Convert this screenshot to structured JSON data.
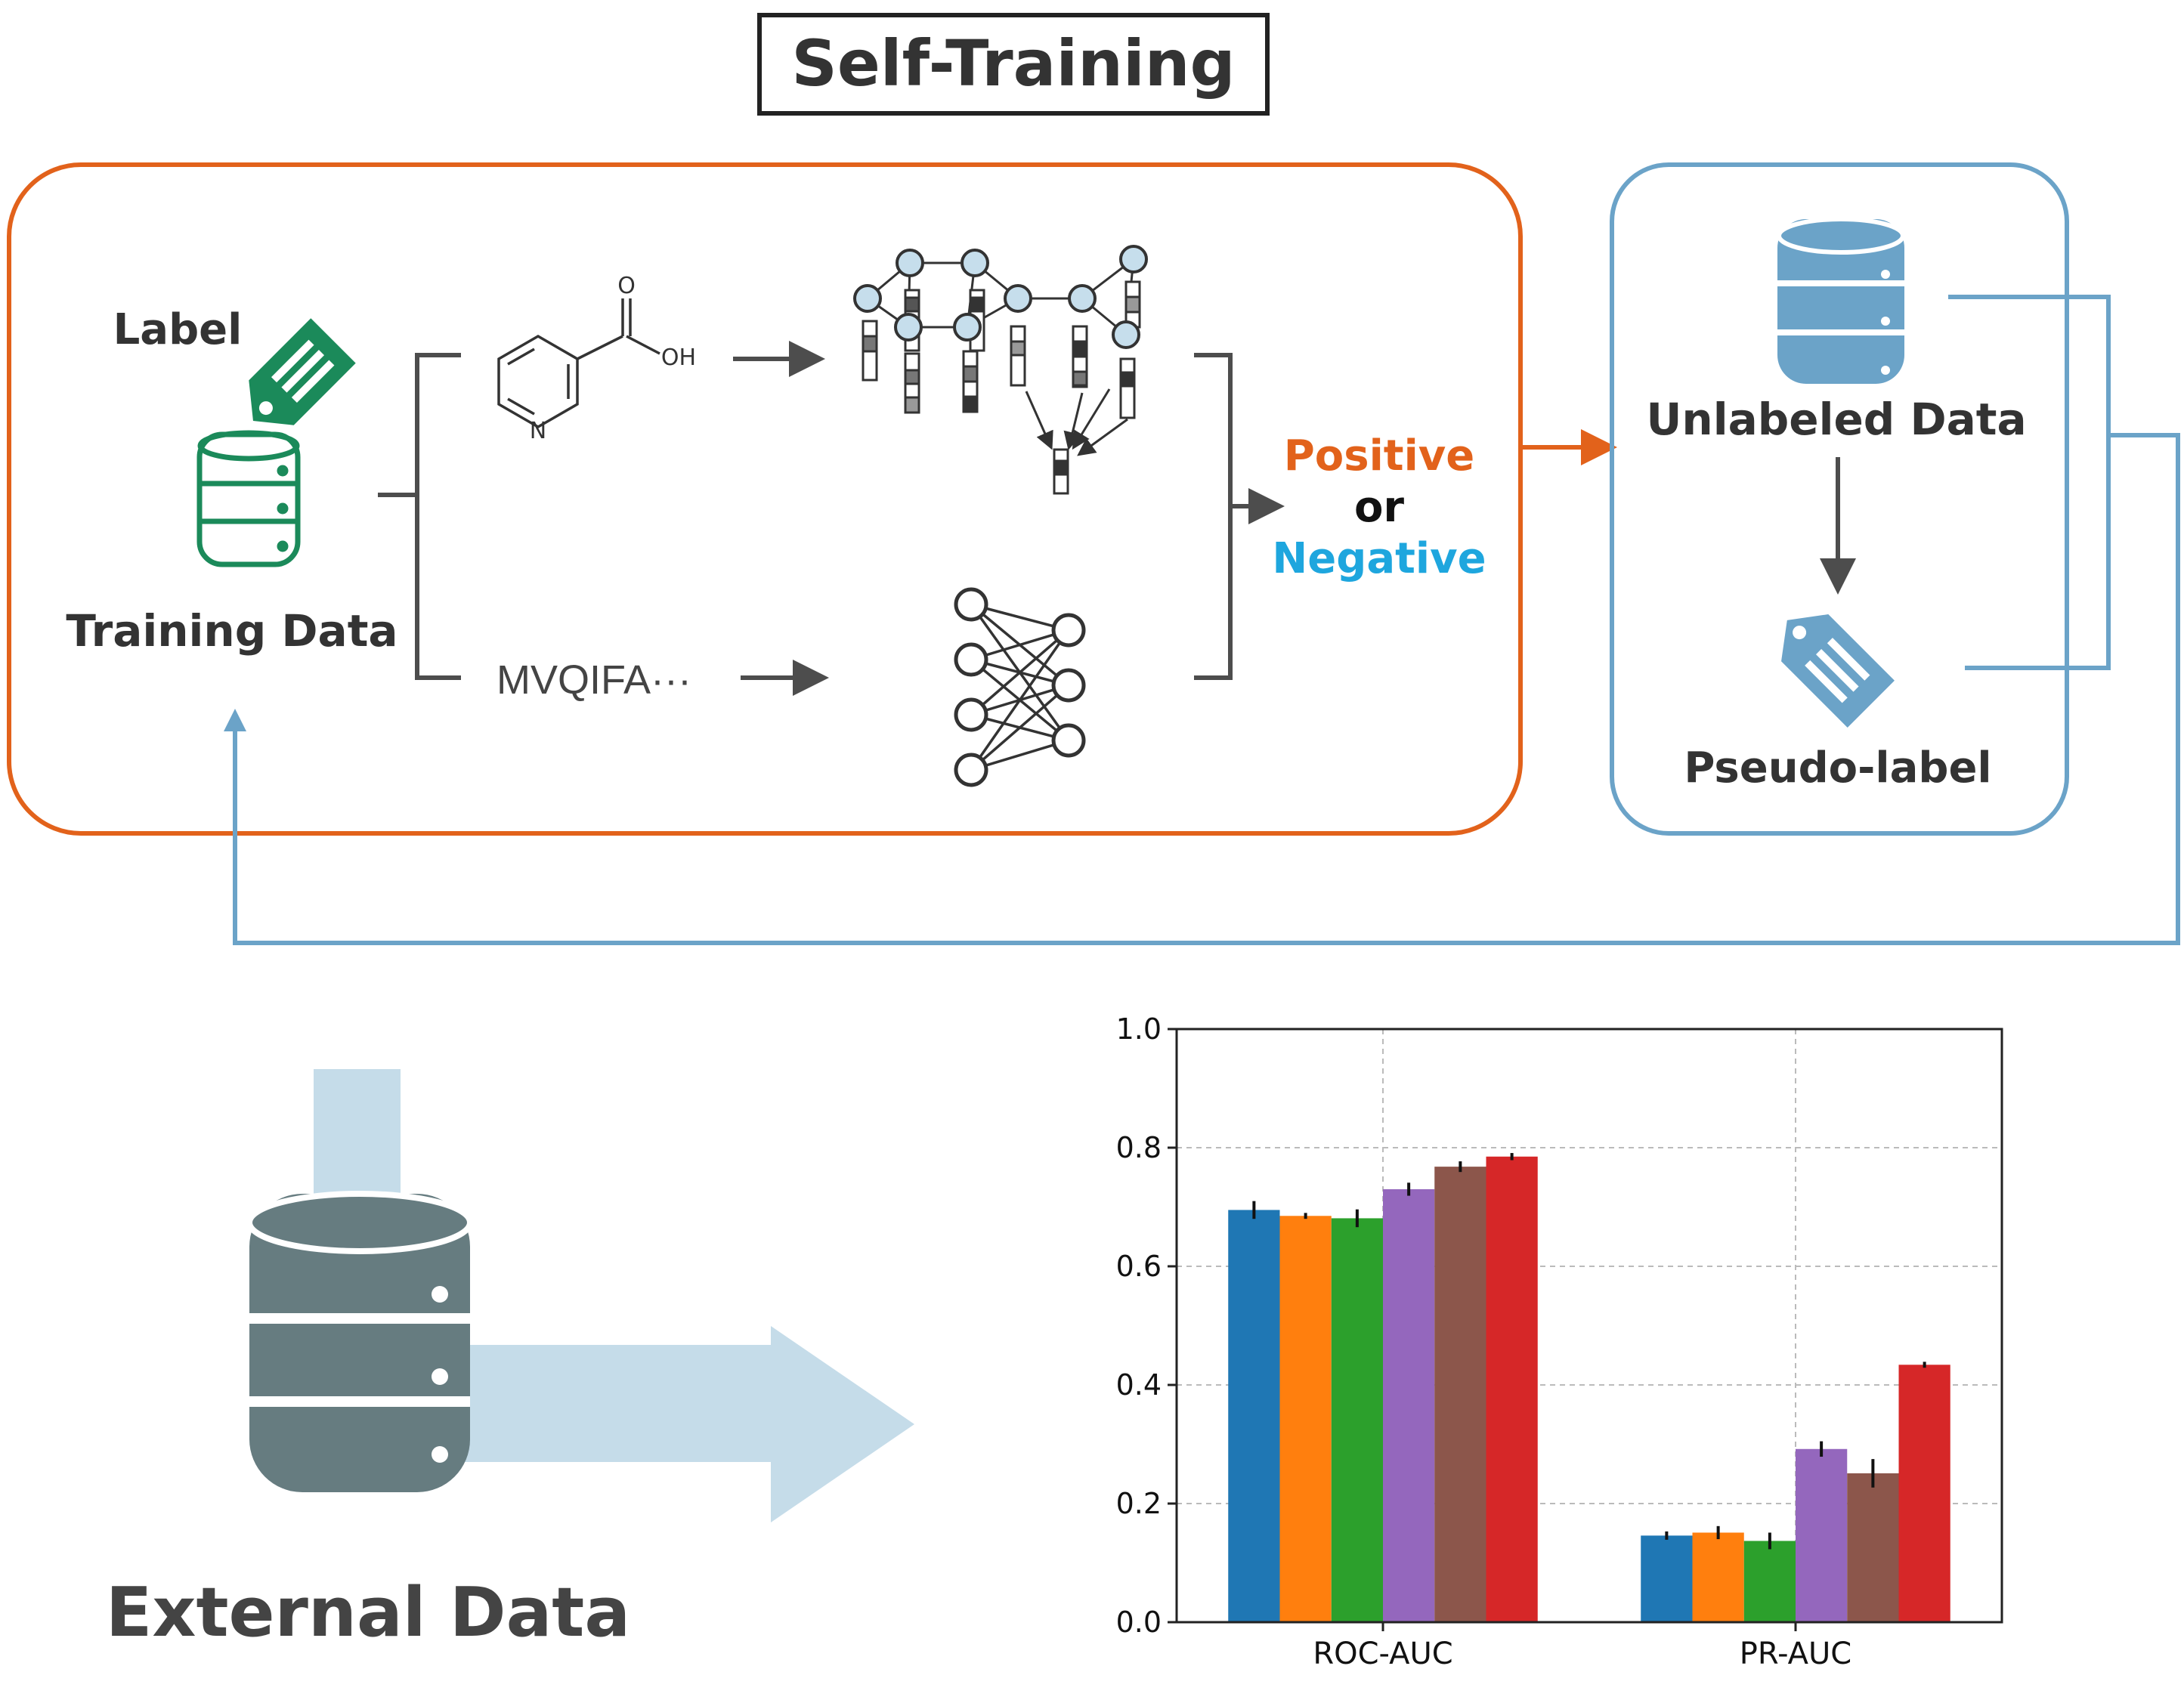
{
  "title": "Self-Training",
  "training": {
    "label_text": "Label",
    "data_label": "Training Data",
    "sequence_text": "MVQIFA···",
    "molecule_atoms": {
      "oxygen": "O",
      "hydroxyl": "OH",
      "nitrogen": "N"
    },
    "colors": {
      "border": "#E2621B",
      "icon": "#1B8A5A"
    }
  },
  "prediction": {
    "positive": "Positive",
    "or": "or",
    "negative": "Negative",
    "positive_color": "#E2621B",
    "negative_color": "#1EA6DE"
  },
  "unlabeled": {
    "data_label": "Unlabeled Data",
    "pseudo_label": "Pseudo-label",
    "colors": {
      "border": "#6BA3C8",
      "icon": "#6BA3C8"
    }
  },
  "external": {
    "label": "External Data",
    "colors": {
      "database": "#667C80",
      "arrow": "#C5DCE9"
    }
  },
  "icons": [
    "label-tag-icon",
    "database-icon",
    "molecule-structure-icon",
    "graph-neural-network-icon",
    "neural-network-icon",
    "pseudo-label-tag-icon",
    "external-database-icon"
  ],
  "chart_data": {
    "type": "bar",
    "categories": [
      "ROC-AUC",
      "PR-AUC"
    ],
    "ylim": [
      0,
      1.0
    ],
    "yticks": [
      "0.0",
      "0.2",
      "0.4",
      "0.6",
      "0.8",
      "1.0"
    ],
    "grid": true,
    "series": [
      {
        "color": "#1F77B4",
        "values": [
          0.695,
          0.146
        ],
        "errors": [
          0.015,
          0.007
        ]
      },
      {
        "color": "#FF7F0E",
        "values": [
          0.685,
          0.151
        ],
        "errors": [
          0.005,
          0.011
        ]
      },
      {
        "color": "#2CA02C",
        "values": [
          0.681,
          0.137
        ],
        "errors": [
          0.015,
          0.014
        ]
      },
      {
        "color": "#9467BD",
        "values": [
          0.73,
          0.292
        ],
        "errors": [
          0.011,
          0.013
        ]
      },
      {
        "color": "#8C564B",
        "values": [
          0.768,
          0.251
        ],
        "errors": [
          0.009,
          0.024
        ]
      },
      {
        "color": "#D62728",
        "values": [
          0.785,
          0.434
        ],
        "errors": [
          0.006,
          0.005
        ]
      }
    ]
  }
}
